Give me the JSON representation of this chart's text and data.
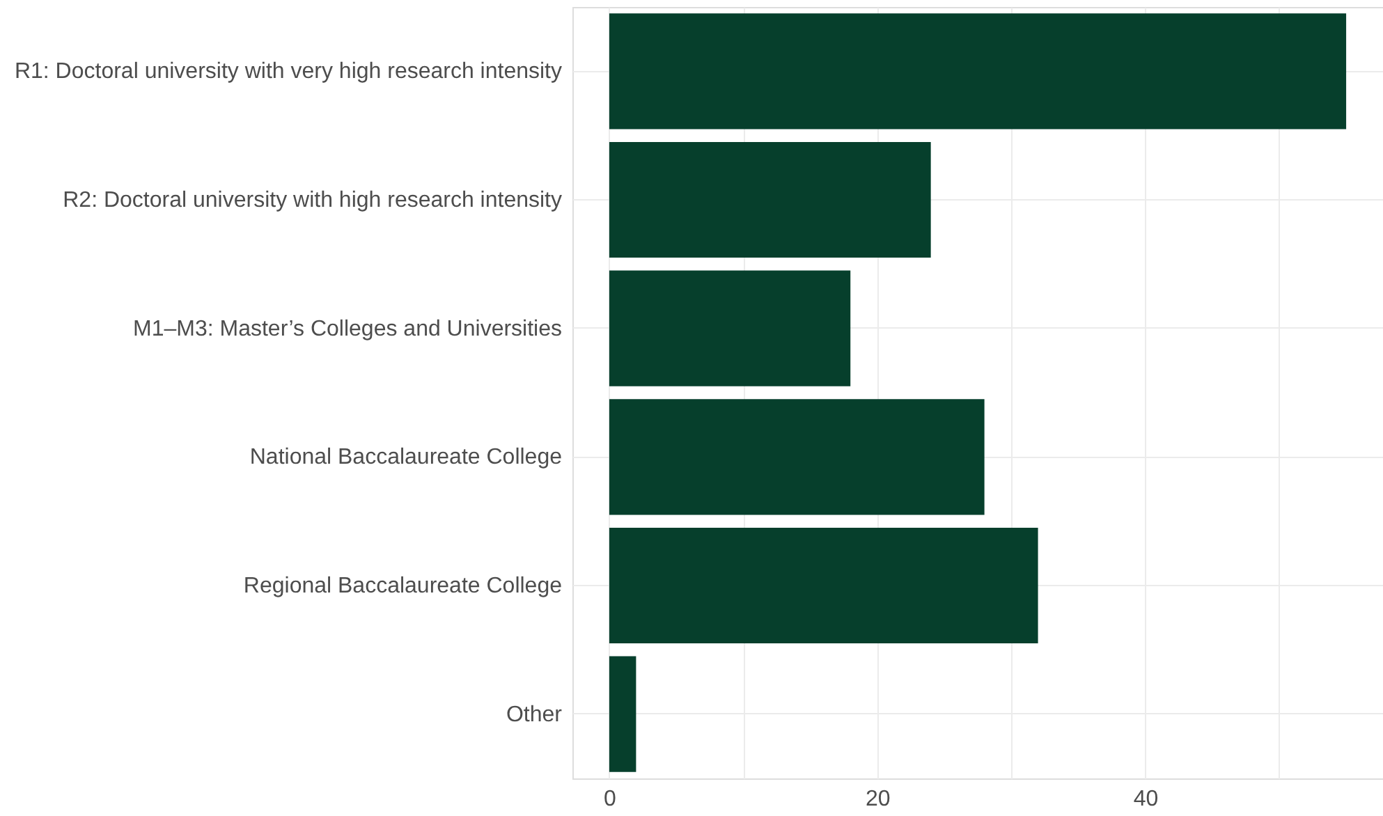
{
  "chart_data": {
    "type": "bar",
    "orientation": "horizontal",
    "categories": [
      "R1:  Doctoral university with very high research intensity",
      "R2:  Doctoral university with high research intensity",
      "M1–M3:  Master’s Colleges and Universities",
      "National Baccalaureate College",
      "Regional Baccalaureate College",
      "Other"
    ],
    "values": [
      55,
      24,
      18,
      28,
      32,
      2
    ],
    "color": "#063f2c",
    "xlim": [
      -2.75,
      57.75
    ],
    "xticks": [
      0,
      {
        "value": 10,
        "label": null
      },
      20,
      {
        "value": 30,
        "label": null
      },
      40,
      {
        "value": 50,
        "label": null
      }
    ],
    "grid": true
  }
}
